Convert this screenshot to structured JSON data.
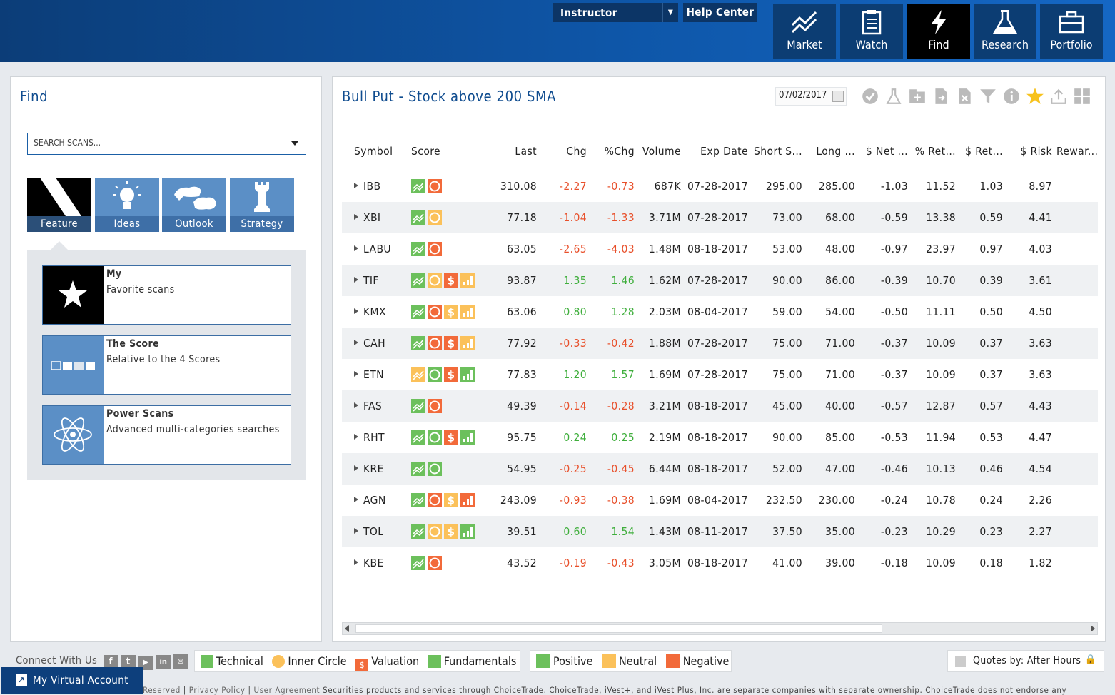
{
  "header": {
    "role_select": "Instructor",
    "help_center": "Help Center",
    "nav": [
      {
        "label": "Market",
        "icon": "market-trend-icon",
        "active": false
      },
      {
        "label": "Watch",
        "icon": "clipboard-icon",
        "active": false
      },
      {
        "label": "Find",
        "icon": "lightning-icon",
        "active": true
      },
      {
        "label": "Research",
        "icon": "flask-icon",
        "active": false
      },
      {
        "label": "Portfolio",
        "icon": "briefcase-icon",
        "active": false
      }
    ]
  },
  "left_panel": {
    "title": "Find",
    "search_placeholder": "SEARCH SCANS...",
    "tiles": [
      {
        "label": "Feature",
        "icon": "feature-stripe-icon",
        "active": true
      },
      {
        "label": "Ideas",
        "icon": "lightbulb-icon",
        "active": false
      },
      {
        "label": "Outlook",
        "icon": "bull-bear-icon",
        "active": false
      },
      {
        "label": "Strategy",
        "icon": "chess-rook-icon",
        "active": false
      }
    ],
    "cards": [
      {
        "title": "My",
        "desc": "Favorite scans",
        "icon": "star-icon"
      },
      {
        "title": "The Score",
        "desc": "Relative to the 4 Scores",
        "icon": "score-squares-icon"
      },
      {
        "title": "Power Scans",
        "desc": "Advanced multi-categories searches",
        "icon": "atom-icon"
      }
    ]
  },
  "right_panel": {
    "title": "Bull Put - Stock above 200 SMA",
    "date": "07/02/2017",
    "toolbar_icons": [
      "check-circle-icon",
      "flask-icon",
      "add-folder-icon",
      "export-doc-icon",
      "delete-doc-icon",
      "filter-icon",
      "info-icon",
      "star-icon",
      "upload-icon",
      "grid-icon"
    ],
    "columns": [
      "Symbol",
      "Score",
      "Last",
      "Chg",
      "%Chg",
      "Volume",
      "Exp Date",
      "Short S...",
      "Long ...",
      "$ Net ...",
      "% Ret...",
      "$ Ret...",
      "$ Risk",
      "Rewar..."
    ],
    "rows": [
      {
        "symbol": "IBB",
        "score": [
          "technical-positive",
          "circle-negative"
        ],
        "last": "310.08",
        "chg": "-2.27",
        "pchg": "-0.73",
        "volume": "687K",
        "exp": "07-28-2017",
        "short": "295.00",
        "long": "285.00",
        "net": "-1.03",
        "pret": "11.52",
        "dret": "1.03",
        "risk": "8.97",
        "reward": ""
      },
      {
        "symbol": "XBI",
        "score": [
          "technical-positive",
          "circle-neutral"
        ],
        "last": "77.18",
        "chg": "-1.04",
        "pchg": "-1.33",
        "volume": "3.71M",
        "exp": "07-28-2017",
        "short": "73.00",
        "long": "68.00",
        "net": "-0.59",
        "pret": "13.38",
        "dret": "0.59",
        "risk": "4.41",
        "reward": ""
      },
      {
        "symbol": "LABU",
        "score": [
          "technical-positive",
          "circle-negative"
        ],
        "last": "63.05",
        "chg": "-2.65",
        "pchg": "-4.03",
        "volume": "1.48M",
        "exp": "08-18-2017",
        "short": "53.00",
        "long": "48.00",
        "net": "-0.97",
        "pret": "23.97",
        "dret": "0.97",
        "risk": "4.03",
        "reward": ""
      },
      {
        "symbol": "TIF",
        "score": [
          "technical-positive",
          "circle-neutral",
          "dollar-negative",
          "bars-neutral"
        ],
        "last": "93.87",
        "chg": "1.35",
        "pchg": "1.46",
        "volume": "1.62M",
        "exp": "07-28-2017",
        "short": "90.00",
        "long": "86.00",
        "net": "-0.39",
        "pret": "10.70",
        "dret": "0.39",
        "risk": "3.61",
        "reward": ""
      },
      {
        "symbol": "KMX",
        "score": [
          "technical-positive",
          "circle-negative",
          "dollar-neutral",
          "bars-neutral"
        ],
        "last": "63.06",
        "chg": "0.80",
        "pchg": "1.28",
        "volume": "2.03M",
        "exp": "08-04-2017",
        "short": "59.00",
        "long": "54.00",
        "net": "-0.50",
        "pret": "11.11",
        "dret": "0.50",
        "risk": "4.50",
        "reward": ""
      },
      {
        "symbol": "CAH",
        "score": [
          "technical-positive",
          "circle-negative",
          "dollar-negative",
          "bars-neutral"
        ],
        "last": "77.92",
        "chg": "-0.33",
        "pchg": "-0.42",
        "volume": "1.88M",
        "exp": "07-28-2017",
        "short": "75.00",
        "long": "71.00",
        "net": "-0.37",
        "pret": "10.09",
        "dret": "0.37",
        "risk": "3.63",
        "reward": ""
      },
      {
        "symbol": "ETN",
        "score": [
          "technical-neutral",
          "circle-positive",
          "dollar-negative",
          "bars-positive"
        ],
        "last": "77.83",
        "chg": "1.20",
        "pchg": "1.57",
        "volume": "1.69M",
        "exp": "07-28-2017",
        "short": "75.00",
        "long": "71.00",
        "net": "-0.37",
        "pret": "10.09",
        "dret": "0.37",
        "risk": "3.63",
        "reward": ""
      },
      {
        "symbol": "FAS",
        "score": [
          "technical-positive",
          "circle-negative"
        ],
        "last": "49.39",
        "chg": "-0.14",
        "pchg": "-0.28",
        "volume": "3.21M",
        "exp": "08-18-2017",
        "short": "45.00",
        "long": "40.00",
        "net": "-0.57",
        "pret": "12.87",
        "dret": "0.57",
        "risk": "4.43",
        "reward": ""
      },
      {
        "symbol": "RHT",
        "score": [
          "technical-positive",
          "circle-positive",
          "dollar-negative",
          "bars-positive"
        ],
        "last": "95.75",
        "chg": "0.24",
        "pchg": "0.25",
        "volume": "2.19M",
        "exp": "08-18-2017",
        "short": "90.00",
        "long": "85.00",
        "net": "-0.53",
        "pret": "11.94",
        "dret": "0.53",
        "risk": "4.47",
        "reward": ""
      },
      {
        "symbol": "KRE",
        "score": [
          "technical-positive",
          "circle-positive"
        ],
        "last": "54.95",
        "chg": "-0.25",
        "pchg": "-0.45",
        "volume": "6.44M",
        "exp": "08-18-2017",
        "short": "52.00",
        "long": "47.00",
        "net": "-0.46",
        "pret": "10.13",
        "dret": "0.46",
        "risk": "4.54",
        "reward": ""
      },
      {
        "symbol": "AGN",
        "score": [
          "technical-positive",
          "circle-negative",
          "dollar-neutral",
          "bars-negative"
        ],
        "last": "243.09",
        "chg": "-0.93",
        "pchg": "-0.38",
        "volume": "1.69M",
        "exp": "08-04-2017",
        "short": "232.50",
        "long": "230.00",
        "net": "-0.24",
        "pret": "10.78",
        "dret": "0.24",
        "risk": "2.26",
        "reward": ""
      },
      {
        "symbol": "TOL",
        "score": [
          "technical-positive",
          "circle-neutral",
          "dollar-neutral",
          "bars-positive"
        ],
        "last": "39.51",
        "chg": "0.60",
        "pchg": "1.54",
        "volume": "1.43M",
        "exp": "08-11-2017",
        "short": "37.50",
        "long": "35.00",
        "net": "-0.23",
        "pret": "10.29",
        "dret": "0.23",
        "risk": "2.27",
        "reward": ""
      },
      {
        "symbol": "KBE",
        "score": [
          "technical-positive",
          "circle-negative"
        ],
        "last": "43.52",
        "chg": "-0.19",
        "pchg": "-0.43",
        "volume": "3.05M",
        "exp": "08-18-2017",
        "short": "41.00",
        "long": "39.00",
        "net": "-0.18",
        "pret": "10.09",
        "dret": "0.18",
        "risk": "1.82",
        "reward": ""
      }
    ]
  },
  "footer": {
    "connect": "Connect With Us",
    "social_icons": [
      "facebook-icon",
      "twitter-icon",
      "youtube-icon",
      "linkedin-icon",
      "mail-icon"
    ],
    "score_legend": [
      {
        "label": "Technical",
        "icon": "technical-icon"
      },
      {
        "label": "Inner Circle",
        "icon": "inner-circle-icon"
      },
      {
        "label": "Valuation",
        "icon": "valuation-icon"
      },
      {
        "label": "Fundamentals",
        "icon": "fundamentals-icon"
      }
    ],
    "color_legend": [
      {
        "label": "Positive",
        "color": "#6cc05c"
      },
      {
        "label": "Neutral",
        "color": "#fbc15a"
      },
      {
        "label": "Negative",
        "color": "#f26a3a"
      }
    ],
    "quotes": "Quotes by: After Hours",
    "virtual_account": "My Virtual Account",
    "legal_links": [
      "Reserved",
      "Privacy Policy",
      "User Agreement"
    ],
    "legal_text": "Securities products and services through ChoiceTrade. ChoiceTrade, iVest+, and iVest Plus, Inc. are separate companies with separate ownership. ChoiceTrade does not endorse any"
  },
  "colors": {
    "positive": "#6cc05c",
    "neutral": "#fbc15a",
    "negative": "#f26a3a",
    "brand": "#0f4c8f"
  }
}
